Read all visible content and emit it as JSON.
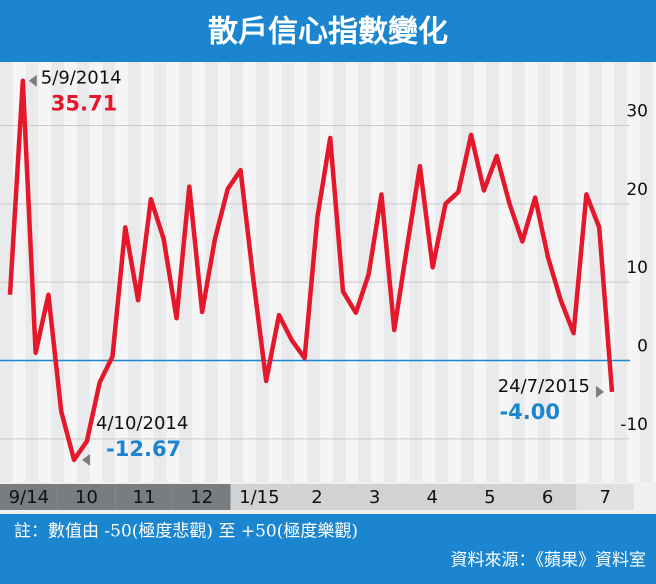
{
  "chart_data": {
    "type": "line",
    "title": "散戶信心指數變化",
    "month_labels": [
      "9/14",
      "10",
      "11",
      "12",
      "1/15",
      "2",
      "3",
      "4",
      "5",
      "6",
      "7"
    ],
    "series": [
      {
        "color": "#e5172b",
        "values": [
          8.4,
          35.71,
          1.0,
          8.4,
          -6.5,
          -12.67,
          -10.3,
          -2.8,
          0.5,
          17.0,
          7.7,
          20.6,
          15.5,
          5.4,
          22.2,
          6.2,
          15.5,
          21.9,
          24.3,
          10.3,
          -2.6,
          5.8,
          2.6,
          0.3,
          18.3,
          28.4,
          8.8,
          6.1,
          11.0,
          21.2,
          3.9,
          14.5,
          24.8,
          11.9,
          20.0,
          21.5,
          28.8,
          21.7,
          26.1,
          20.0,
          15.2,
          20.8,
          13.2,
          7.7,
          3.5,
          21.2,
          17.0,
          -4.0
        ]
      }
    ],
    "ylim": [
      -15.5,
      38.1
    ],
    "yticks": [
      30,
      20,
      10,
      0,
      -10
    ],
    "grid": true,
    "annotations": [
      {
        "date": "5/9/2014",
        "value": 35.71,
        "value_label": "35.71",
        "color": "#e5172b"
      },
      {
        "date": "4/10/2014",
        "value": -12.67,
        "value_label": "-12.67",
        "color": "#1b86cf"
      },
      {
        "date": "24/7/2015",
        "value": -4.0,
        "value_label": "-4.00",
        "color": "#1b86cf"
      }
    ],
    "note": "註：數值由 -50(極度悲觀) 至 +50(極度樂觀)",
    "source": "資料來源：《蘋果》資料室"
  }
}
